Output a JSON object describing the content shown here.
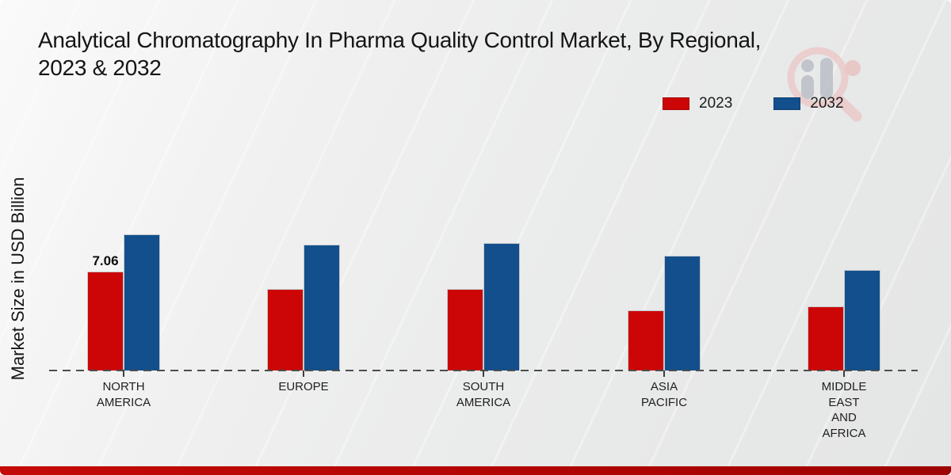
{
  "header": {
    "title_line1": "Analytical Chromatography In Pharma Quality Control Market, By Regional,",
    "title_line2": "2023 & 2032"
  },
  "legend": {
    "position": "top-right",
    "items": [
      {
        "label": "2023",
        "color": "#cc0606"
      },
      {
        "label": "2032",
        "color": "#124f8c"
      }
    ]
  },
  "y_axis": {
    "label": "Market Size in USD Billion"
  },
  "colors": {
    "series_2023": "#cc0606",
    "series_2032": "#124f8c",
    "baseline_dash": "#4d4d4d",
    "bottom_strip": "#b10503",
    "background": "#ebecec"
  },
  "watermark_icon": "magnifier-bar-chart-logo",
  "chart_data": {
    "type": "bar",
    "title": "Analytical Chromatography In Pharma Quality Control Market, By Regional, 2023 & 2032",
    "xlabel": "",
    "ylabel": "Market Size in USD Billion",
    "categories": [
      "NORTH AMERICA",
      "EUROPE",
      "SOUTH AMERICA",
      "ASIA PACIFIC",
      "MIDDLE EAST AND AFRICA"
    ],
    "category_label_lines": [
      [
        "NORTH",
        "AMERICA"
      ],
      [
        "EUROPE"
      ],
      [
        "SOUTH",
        "AMERICA"
      ],
      [
        "ASIA",
        "PACIFIC"
      ],
      [
        "MIDDLE",
        "EAST",
        "AND",
        "AFRICA"
      ]
    ],
    "series": [
      {
        "name": "2023",
        "color": "#cc0606",
        "values": [
          7.06,
          5.8,
          5.82,
          4.3,
          4.55
        ]
      },
      {
        "name": "2032",
        "color": "#124f8c",
        "values": [
          9.71,
          8.96,
          9.05,
          8.17,
          7.15
        ]
      }
    ],
    "data_labels": [
      {
        "series_index": 0,
        "category_index": 0,
        "text": "7.06"
      }
    ],
    "ylim": [
      0,
      11
    ],
    "grid": false,
    "baseline_style": "dashed",
    "legend_position": "top-right"
  }
}
